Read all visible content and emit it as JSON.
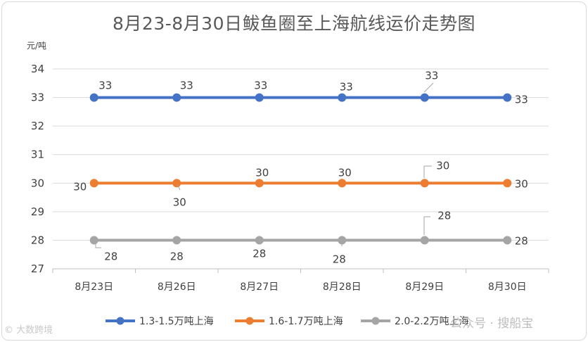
{
  "title": "8月23-8月30日鲅鱼圈至上海航线运价走势图",
  "unit_label": "元/吨",
  "watermark_left": "© 大数跨境",
  "watermark_right": "公众号 · 搜船宝",
  "colors": {
    "series1": "#4472C4",
    "series2": "#ED7D31",
    "series3": "#A5A5A5",
    "grid": "#d9d9d9",
    "text": "#404040"
  },
  "chart_data": {
    "type": "line",
    "title": "8月23-8月30日鲅鱼圈至上海航线运价走势图",
    "ylabel": "元/吨",
    "xlabel": "",
    "categories": [
      "8月23日",
      "8月26日",
      "8月27日",
      "8月28日",
      "8月29日",
      "8月30日"
    ],
    "ylim": [
      27,
      34
    ],
    "yticks": [
      27,
      28,
      29,
      30,
      31,
      32,
      33,
      34
    ],
    "grid": true,
    "legend": "bottom",
    "series": [
      {
        "name": "1.3-1.5万吨上海",
        "values": [
          33,
          33,
          33,
          33,
          33,
          33
        ],
        "color": "#4472C4"
      },
      {
        "name": "1.6-1.7万吨上海",
        "values": [
          30,
          30,
          30,
          30,
          30,
          30
        ],
        "color": "#ED7D31"
      },
      {
        "name": "2.0-2.2万吨上海",
        "values": [
          28,
          28,
          28,
          28,
          28,
          28
        ],
        "color": "#A5A5A5"
      }
    ]
  }
}
